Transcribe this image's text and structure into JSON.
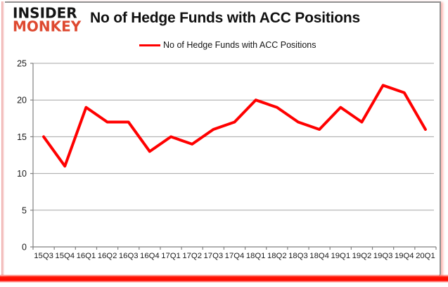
{
  "branding": {
    "line1": "INSIDER",
    "line2": "MONKEY"
  },
  "header": {
    "title": "No of Hedge Funds with ACC Positions"
  },
  "legend": {
    "label": "No of Hedge Funds with ACC Positions"
  },
  "colors": {
    "series_red": "#ff0000",
    "logo_red": "#de4930",
    "gridline_gray": "#a6a6a6",
    "axis_gray": "#808080",
    "border_gray": "#919191"
  },
  "chart_data": {
    "type": "line",
    "title": "No of Hedge Funds with ACC Positions",
    "categories": [
      "15Q3",
      "15Q4",
      "16Q1",
      "16Q2",
      "16Q3",
      "16Q4",
      "17Q1",
      "17Q2",
      "17Q3",
      "17Q4",
      "18Q1",
      "18Q2",
      "18Q3",
      "18Q4",
      "19Q1",
      "19Q2",
      "19Q3",
      "19Q4",
      "20Q1"
    ],
    "values": [
      15,
      11,
      19,
      17,
      17,
      13,
      15,
      14,
      16,
      17,
      20,
      19,
      17,
      16,
      19,
      17,
      22,
      21,
      16
    ],
    "xlabel": "",
    "ylabel": "",
    "ylim": [
      0,
      25
    ],
    "yticks": [
      0,
      5,
      10,
      15,
      20,
      25
    ],
    "grid": true,
    "legend_position": "top-center",
    "line_color": "#ff0000"
  }
}
